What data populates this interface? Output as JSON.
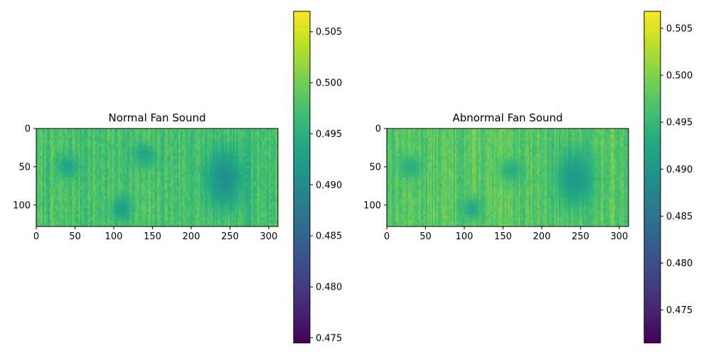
{
  "chart_data": [
    {
      "type": "heatmap",
      "title": "Normal Fan Sound",
      "xlabel": "",
      "ylabel": "",
      "x_range": [
        0,
        312
      ],
      "y_range": [
        0,
        128
      ],
      "y_inverted": true,
      "x_ticks": [
        "0",
        "50",
        "100",
        "150",
        "200",
        "250",
        "300"
      ],
      "y_ticks": [
        "0",
        "50",
        "100"
      ],
      "colormap": "viridis",
      "color_range": [
        0.4745,
        0.507
      ],
      "colorbar_ticks": [
        "0.475",
        "0.480",
        "0.485",
        "0.490",
        "0.495",
        "0.500",
        "0.505"
      ],
      "dark_regions": [
        {
          "x": 243,
          "y": 65,
          "rx": 25,
          "ry": 40,
          "value": 0.4905
        },
        {
          "x": 110,
          "y": 105,
          "rx": 12,
          "ry": 15,
          "value": 0.4925
        },
        {
          "x": 40,
          "y": 50,
          "rx": 15,
          "ry": 15,
          "value": 0.4935
        },
        {
          "x": 140,
          "y": 35,
          "rx": 15,
          "ry": 15,
          "value": 0.4935
        }
      ]
    },
    {
      "type": "heatmap",
      "title": "Abnormal Fan Sound",
      "xlabel": "",
      "ylabel": "",
      "x_range": [
        0,
        312
      ],
      "y_range": [
        0,
        128
      ],
      "y_inverted": true,
      "x_ticks": [
        "0",
        "50",
        "100",
        "150",
        "200",
        "250",
        "300"
      ],
      "y_ticks": [
        "0",
        "50",
        "100"
      ],
      "colormap": "viridis",
      "color_range": [
        0.4715,
        0.5068
      ],
      "colorbar_ticks": [
        "0.475",
        "0.480",
        "0.485",
        "0.490",
        "0.495",
        "0.500",
        "0.505"
      ],
      "dark_regions": [
        {
          "x": 243,
          "y": 65,
          "rx": 25,
          "ry": 40,
          "value": 0.4905
        },
        {
          "x": 110,
          "y": 105,
          "rx": 12,
          "ry": 15,
          "value": 0.4925
        },
        {
          "x": 30,
          "y": 50,
          "rx": 15,
          "ry": 15,
          "value": 0.4935
        },
        {
          "x": 160,
          "y": 55,
          "rx": 15,
          "ry": 15,
          "value": 0.4935
        }
      ]
    }
  ]
}
